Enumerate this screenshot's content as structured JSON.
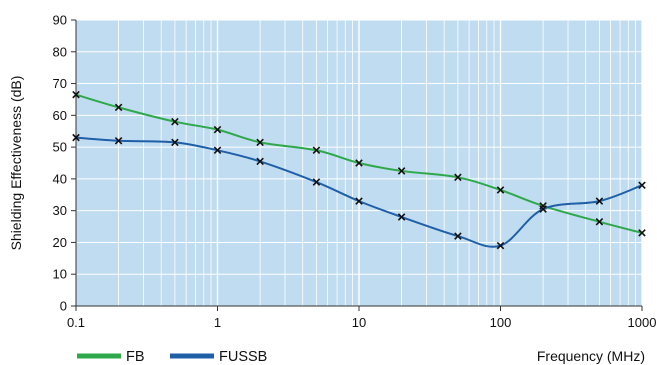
{
  "chart_data": {
    "type": "line",
    "xscale": "log",
    "xlim": [
      0.1,
      1000
    ],
    "ylim": [
      0,
      90
    ],
    "xticks": [
      "0.1",
      "1",
      "10",
      "100",
      "1000"
    ],
    "yticks": [
      "0",
      "10",
      "20",
      "30",
      "40",
      "50",
      "60",
      "70",
      "80",
      "90"
    ],
    "xlabel": "Frequency (MHz)",
    "ylabel": "Shielding Effectiveness (dB)",
    "grid": true,
    "legend_position": "bottom-left",
    "background_color": "#c0dcf0",
    "grid_color": "#ffffff",
    "series": [
      {
        "name": "FB",
        "color": "#2ea84a",
        "x": [
          0.1,
          0.2,
          0.5,
          1,
          2,
          5,
          10,
          20,
          50,
          100,
          200,
          500,
          1000
        ],
        "y": [
          66.5,
          62.5,
          58,
          55.5,
          51.5,
          49,
          45,
          42.5,
          40.5,
          36.5,
          31.5,
          26.5,
          23
        ]
      },
      {
        "name": "FUSSB",
        "color": "#1f5fa8",
        "x": [
          0.1,
          0.2,
          0.5,
          1,
          2,
          5,
          10,
          20,
          50,
          100,
          200,
          500,
          1000
        ],
        "y": [
          53,
          52,
          51.5,
          49,
          45.5,
          39,
          33,
          28,
          22,
          19,
          30.5,
          33,
          38
        ]
      }
    ]
  }
}
